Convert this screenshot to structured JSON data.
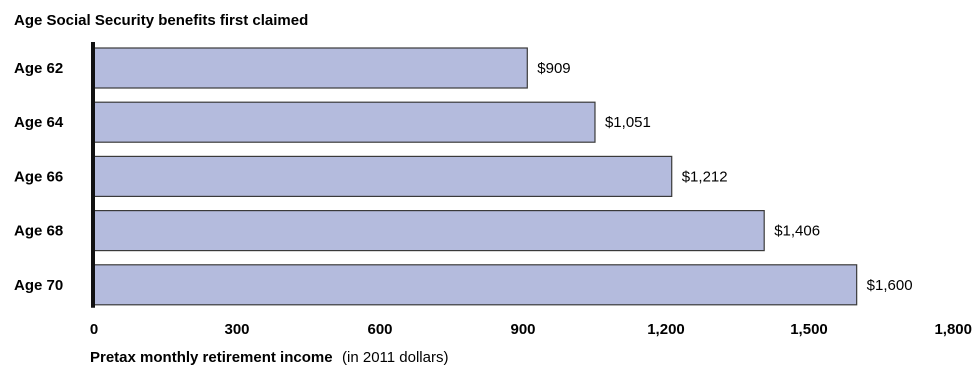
{
  "chart_data": {
    "type": "bar",
    "orientation": "horizontal",
    "title": "Age Social Security benefits first claimed",
    "categories": [
      "Age 62",
      "Age 64",
      "Age 66",
      "Age 68",
      "Age 70"
    ],
    "values": [
      909,
      1051,
      1212,
      1406,
      1600
    ],
    "value_labels": [
      "$909",
      "$1,051",
      "$1,212",
      "$1,406",
      "$1,600"
    ],
    "xlim": [
      0,
      1800
    ],
    "xticks": [
      0,
      300,
      600,
      900,
      1200,
      1500,
      1800
    ],
    "xtick_labels": [
      "0",
      "300",
      "600",
      "900",
      "1,200",
      "1,500",
      "1,800"
    ],
    "xlabel_bold": "Pretax monthly retirement income",
    "xlabel_note": "(in 2011 dollars)",
    "grid": false,
    "legend": "none",
    "bar_color": "#b4bbdd",
    "bar_edge_color": "#3a3a3a",
    "axis_color": "#111111"
  }
}
